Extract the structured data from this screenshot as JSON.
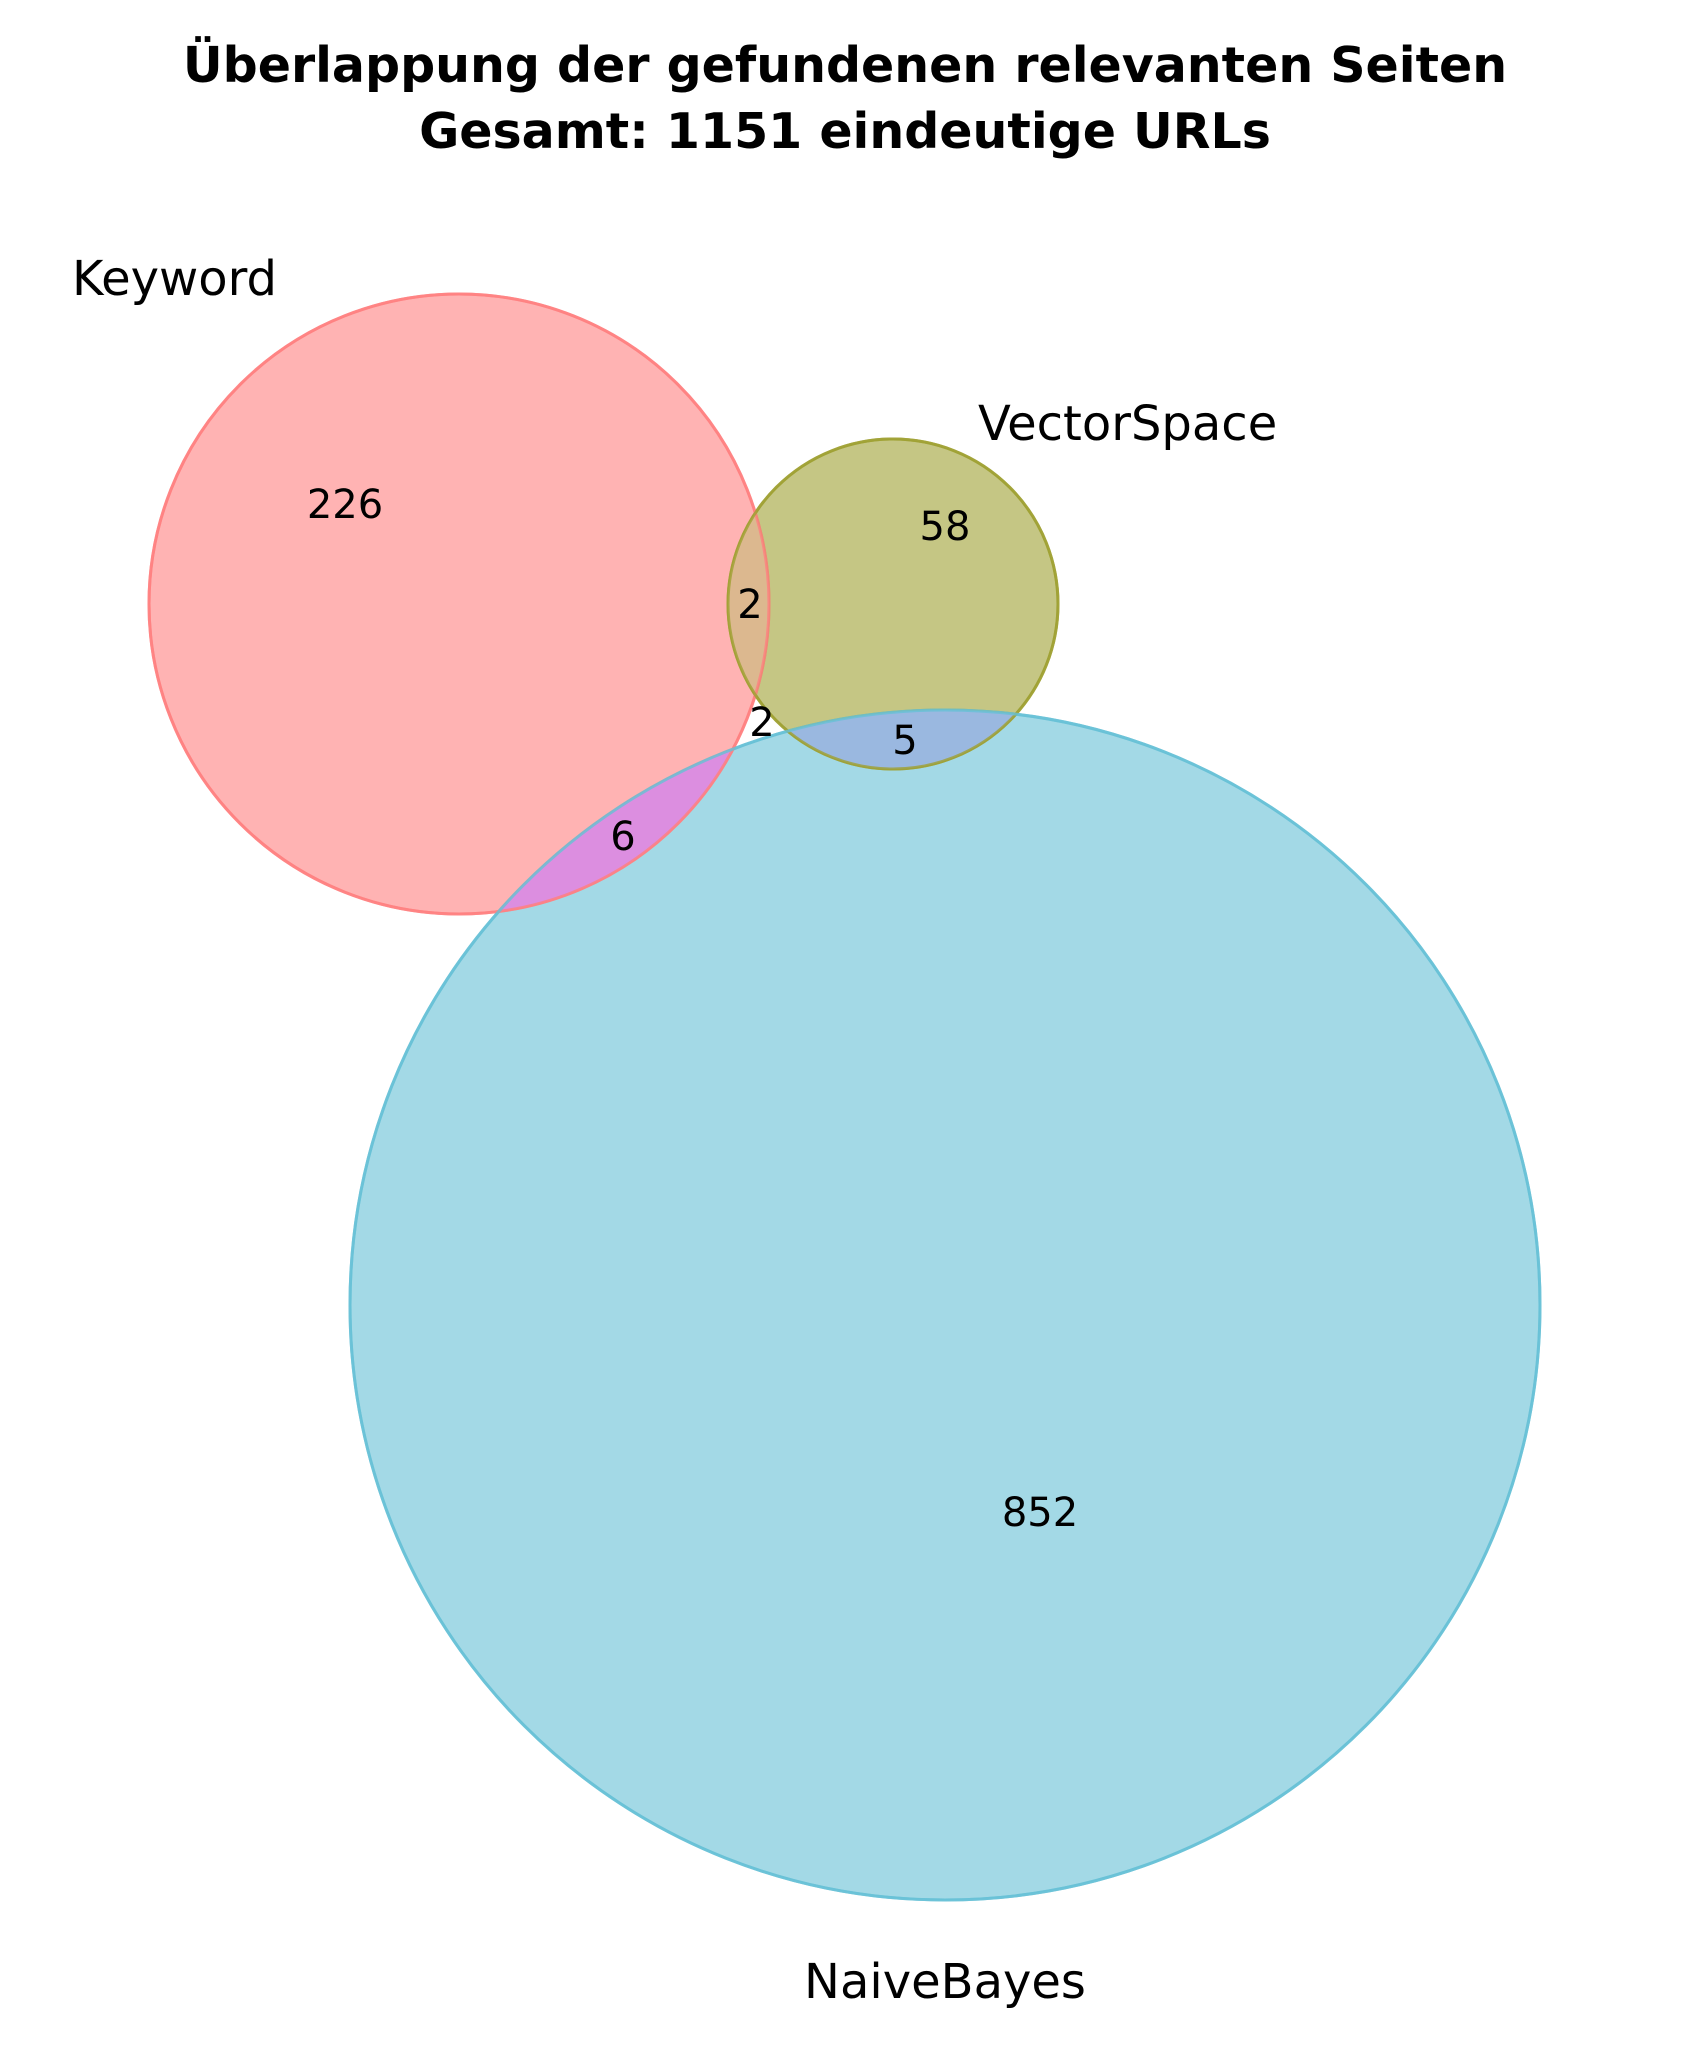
{
  "title": {
    "line1": "Überlappung der gefundenen relevanten Seiten",
    "line2": "Gesamt: 1151 eindeutige URLs"
  },
  "sets": [
    {
      "id": "keyword",
      "name": "Keyword",
      "color": "#ff8080"
    },
    {
      "id": "vectorspace",
      "name": "VectorSpace",
      "color": "#9fa032"
    },
    {
      "id": "naivebayes",
      "name": "NaiveBayes",
      "color": "#66c0d6"
    }
  ],
  "regions": {
    "keyword_only": "226",
    "vectorspace_only": "58",
    "naivebayes_only": "852",
    "keyword_vectorspace": "2",
    "keyword_naivebayes": "6",
    "vectorspace_naivebayes": "5",
    "all_three": "2"
  },
  "colors": {
    "keyword_vectorspace_overlap": "#dcb88f",
    "keyword_naivebayes_overlap": "#dc8ee0",
    "vectorspace_naivebayes_overlap": "#9ab8e0"
  }
}
